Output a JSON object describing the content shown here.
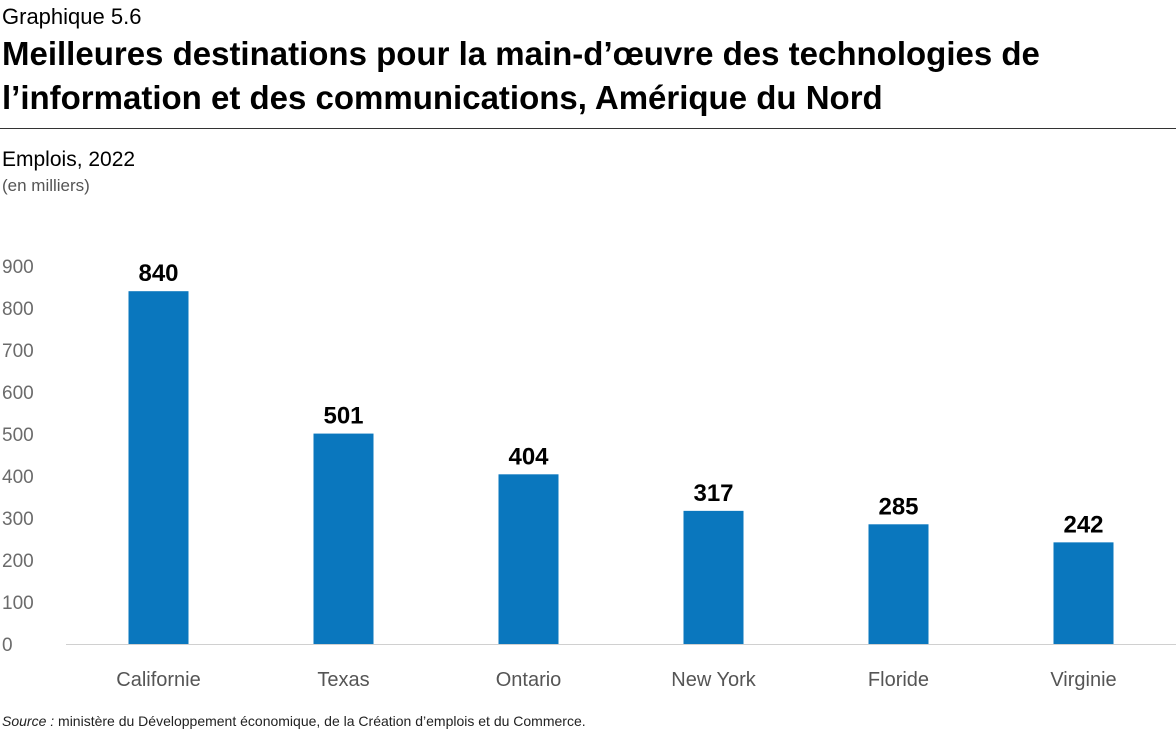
{
  "header": {
    "label": "Graphique 5.6",
    "title": "Meilleures destinations pour la main-d’œuvre des technologies de l’information et des communications, Amérique du Nord",
    "subtitle": "Emplois, 2022",
    "unit": "(en milliers)"
  },
  "chart_data": {
    "type": "bar",
    "title": "Meilleures destinations pour la main-d’œuvre des technologies de l’information et des communications, Amérique du Nord",
    "ylabel": "Emplois, 2022 (en milliers)",
    "xlabel": "",
    "categories": [
      "Californie",
      "Texas",
      "Ontario",
      "New York",
      "Floride",
      "Virginie"
    ],
    "values": [
      840,
      501,
      404,
      317,
      285,
      242
    ],
    "ylim": [
      0,
      900
    ],
    "yticks": [
      0,
      100,
      200,
      300,
      400,
      500,
      600,
      700,
      800,
      900
    ],
    "bar_color": "#0A77BE",
    "grid": false,
    "legend": "none"
  },
  "footer": {
    "source_label": "Source :",
    "source_text": " ministère du Développement économique, de la Création d’emplois et du Commerce."
  }
}
